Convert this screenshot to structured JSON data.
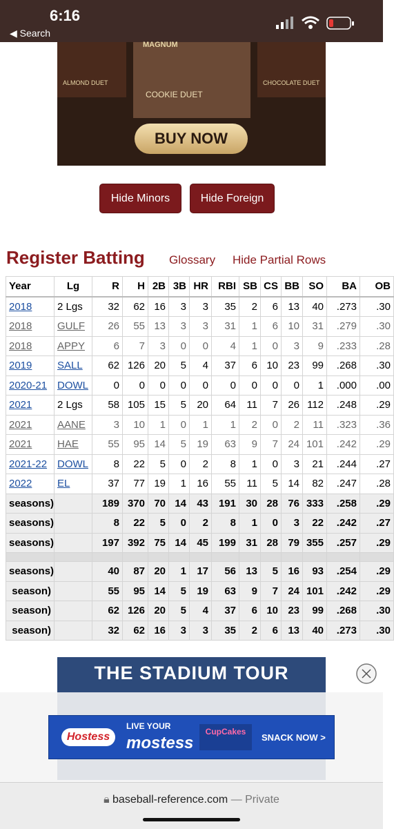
{
  "status_bar": {
    "time": "6:16",
    "back": "Search"
  },
  "ad_top": {
    "brand": "MAGNUM",
    "items": [
      "ALMOND DUET",
      "COOKIE DUET",
      "CHOCOLATE DUET"
    ],
    "button": "BUY NOW"
  },
  "buttons": [
    "Hide Minors",
    "Hide Foreign"
  ],
  "section": {
    "title": "Register Batting",
    "links": [
      "Glossary",
      "Hide Partial Rows"
    ]
  },
  "table": {
    "header": [
      "Year",
      "Lg",
      "R",
      "H",
      "2B",
      "3B",
      "HR",
      "RBI",
      "SB",
      "CS",
      "BB",
      "SO",
      "BA",
      "OB"
    ],
    "rows": [
      {
        "cells": [
          "2018",
          "2 Lgs",
          "32",
          "62",
          "16",
          "3",
          "3",
          "35",
          "2",
          "6",
          "13",
          "40",
          ".273",
          ".30"
        ]
      },
      {
        "cells": [
          "2018",
          "GULF",
          "26",
          "55",
          "13",
          "3",
          "3",
          "31",
          "1",
          "6",
          "10",
          "31",
          ".279",
          ".30"
        ],
        "color": "#666666"
      },
      {
        "cells": [
          "2018",
          "APPY",
          "6",
          "7",
          "3",
          "0",
          "0",
          "4",
          "1",
          "0",
          "3",
          "9",
          ".233",
          ".28"
        ],
        "color": "#666666"
      },
      {
        "cells": [
          "2019",
          "SALL",
          "62",
          "126",
          "20",
          "5",
          "4",
          "37",
          "6",
          "10",
          "23",
          "99",
          ".268",
          ".30"
        ]
      },
      {
        "cells": [
          "2020-21",
          "DOWL",
          "0",
          "0",
          "0",
          "0",
          "0",
          "0",
          "0",
          "0",
          "0",
          "1",
          ".000",
          ".00"
        ]
      },
      {
        "cells": [
          "2021",
          "2 Lgs",
          "58",
          "105",
          "15",
          "5",
          "20",
          "64",
          "11",
          "7",
          "26",
          "112",
          ".248",
          ".29"
        ]
      },
      {
        "cells": [
          "2021",
          "AANE",
          "3",
          "10",
          "1",
          "0",
          "1",
          "1",
          "2",
          "0",
          "2",
          "11",
          ".323",
          ".36"
        ],
        "color": "#666666"
      },
      {
        "cells": [
          "2021",
          "HAE",
          "55",
          "95",
          "14",
          "5",
          "19",
          "63",
          "9",
          "7",
          "24",
          "101",
          ".242",
          ".29"
        ],
        "color": "#666666"
      },
      {
        "cells": [
          "2021-22",
          "DOWL",
          "8",
          "22",
          "5",
          "0",
          "2",
          "8",
          "1",
          "0",
          "3",
          "21",
          ".244",
          ".27"
        ]
      },
      {
        "cells": [
          "2022",
          "EL",
          "37",
          "77",
          "19",
          "1",
          "16",
          "55",
          "11",
          "5",
          "14",
          "82",
          ".247",
          ".28"
        ]
      }
    ],
    "totals_rows": [
      [
        "seasons)",
        "",
        "189",
        "370",
        "70",
        "14",
        "43",
        "191",
        "30",
        "28",
        "76",
        "333",
        ".258",
        ".29"
      ],
      [
        "seasons)",
        "",
        "8",
        "22",
        "5",
        "0",
        "2",
        "8",
        "1",
        "0",
        "3",
        "22",
        ".242",
        ".27"
      ],
      [
        "seasons)",
        "",
        "197",
        "392",
        "75",
        "14",
        "45",
        "199",
        "31",
        "28",
        "79",
        "355",
        ".257",
        ".29"
      ]
    ],
    "summary_rows": [
      [
        "seasons)",
        "",
        "40",
        "87",
        "20",
        "1",
        "17",
        "56",
        "13",
        "5",
        "16",
        "93",
        ".254",
        ".29"
      ],
      [
        "season)",
        "",
        "55",
        "95",
        "14",
        "5",
        "19",
        "63",
        "9",
        "7",
        "24",
        "101",
        ".242",
        ".29"
      ],
      [
        "season)",
        "",
        "62",
        "126",
        "20",
        "5",
        "4",
        "37",
        "6",
        "10",
        "23",
        "99",
        ".268",
        ".30"
      ],
      [
        "season)",
        "",
        "32",
        "62",
        "16",
        "3",
        "3",
        "35",
        "2",
        "6",
        "13",
        "40",
        ".273",
        ".30"
      ]
    ]
  },
  "ad_bottom": {
    "title": "THE STADIUM TOUR"
  },
  "ad_overlay": {
    "brand": "Hostess",
    "line1": "LIVE YOUR",
    "line2": "mostess",
    "product": "CupCakes",
    "cta": "SNACK NOW >"
  },
  "browser": {
    "url": "baseball-reference.com",
    "mode": "— Private"
  }
}
